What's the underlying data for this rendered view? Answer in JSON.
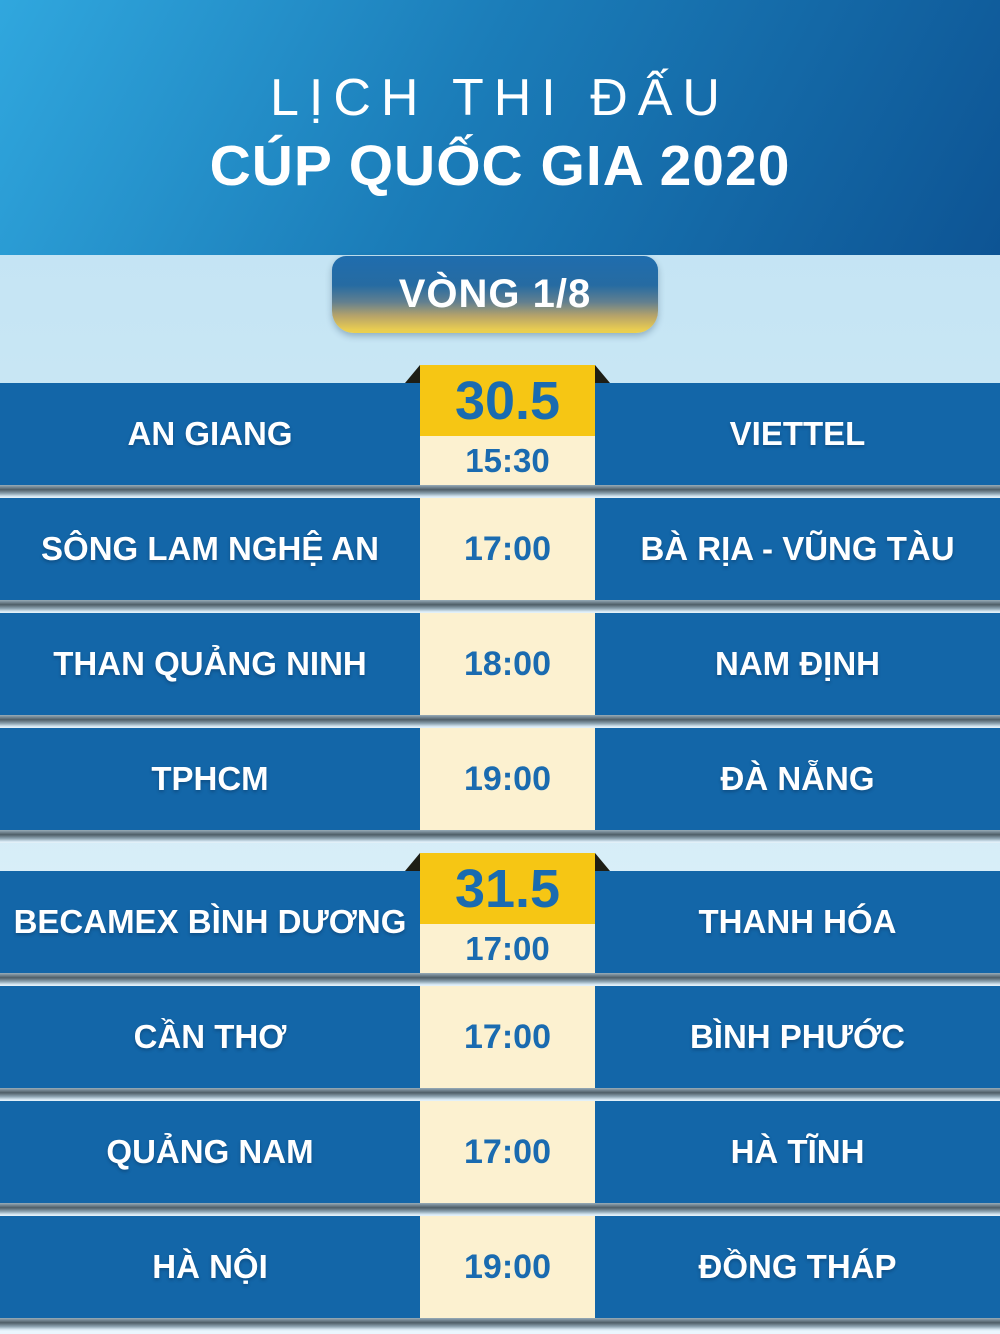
{
  "header": {
    "title_line1": "LỊCH THI ĐẤU",
    "title_line2": "CÚP QUỐC GIA 2020"
  },
  "round_label": "VÒNG 1/8",
  "schedule": {
    "groups": [
      {
        "date": "30.5",
        "matches": [
          {
            "home": "AN GIANG",
            "time": "15:30",
            "away": "VIETTEL"
          },
          {
            "home": "SÔNG LAM NGHỆ AN",
            "time": "17:00",
            "away": "BÀ RỊA - VŨNG TÀU"
          },
          {
            "home": "THAN QUẢNG NINH",
            "time": "18:00",
            "away": "NAM ĐỊNH"
          },
          {
            "home": "TPHCM",
            "time": "19:00",
            "away": "ĐÀ NẴNG"
          }
        ]
      },
      {
        "date": "31.5",
        "matches": [
          {
            "home": "BECAMEX BÌNH DƯƠNG",
            "time": "17:00",
            "away": "THANH HÓA"
          },
          {
            "home": "CẦN THƠ",
            "time": "17:00",
            "away": "BÌNH PHƯỚC"
          },
          {
            "home": "QUẢNG NAM",
            "time": "17:00",
            "away": "HÀ TĨNH"
          },
          {
            "home": "HÀ NỘI",
            "time": "19:00",
            "away": "ĐỒNG THÁP"
          }
        ]
      }
    ]
  },
  "colors": {
    "header_blue_light": "#30a7de",
    "header_blue_dark": "#0d5494",
    "row_blue": "#1366a8",
    "cream": "#fcf1d0",
    "gold": "#f6c614",
    "accent_text_blue": "#1a6bb0",
    "page_bg_light_blue": "#cde9f6",
    "ribbon_fold_dark": "#1e1e15"
  }
}
